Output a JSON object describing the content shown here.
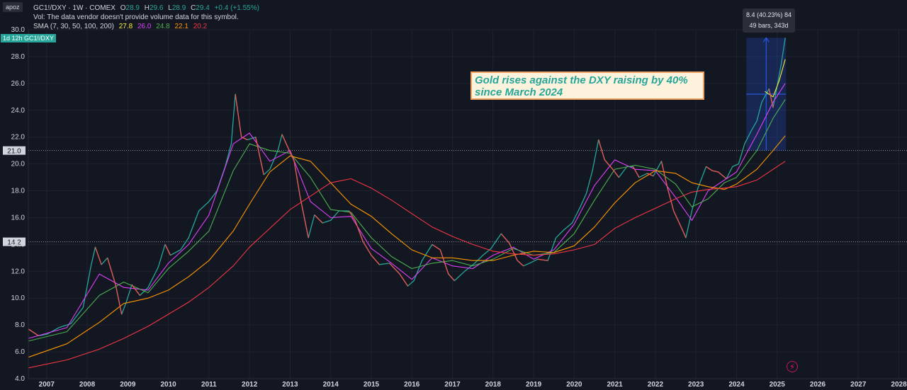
{
  "header": {
    "user_badge": "apoz",
    "symbol": "GC1!/DXY · 1W · COMEX",
    "ohlc": [
      {
        "label": "O",
        "value": "28.9"
      },
      {
        "label": "H",
        "value": "29.6"
      },
      {
        "label": "L",
        "value": "28.9"
      },
      {
        "label": "C",
        "value": "29.4"
      }
    ],
    "change": "+0.4 (+1.55%)",
    "vol_note": "Vol: The data vendor doesn't provide volume data for this symbol.",
    "sma_label": "SMA (7, 30, 50, 100, 200)",
    "sma_values": [
      {
        "value": "27.8",
        "color": "#ffeb3b"
      },
      {
        "value": "26.0",
        "color": "#e040fb"
      },
      {
        "value": "24.8",
        "color": "#4caf50"
      },
      {
        "value": "22.1",
        "color": "#ff9800"
      },
      {
        "value": "20.2",
        "color": "#f23645"
      }
    ],
    "timeframe_badge": "1d 12h",
    "price_tag": "GC1!/DXY"
  },
  "annotation": {
    "text": "Gold rises against the DXY raising by 40% since March 2024"
  },
  "measure": {
    "line1": "8.4 (40.23%) 84",
    "line2": "49 bars, 343d"
  },
  "colors": {
    "background": "#131722",
    "up": "#26a69a",
    "down": "#ef5350",
    "grid": "#1f2330",
    "axis_text": "#d1d4dc",
    "measure_fill": "#2962ff"
  },
  "icons": {
    "flash": "flash-icon"
  },
  "chart_data": {
    "type": "line",
    "yaxis": {
      "ticks": [
        "30.0",
        "28.0",
        "26.0",
        "24.0",
        "22.0",
        "20.0",
        "18.0",
        "16.0",
        "14.0",
        "12.0",
        "10.0",
        "8.0",
        "6.0",
        "4.0"
      ],
      "ylim": [
        4.0,
        30.0
      ],
      "marked_levels": [
        "21.0",
        "14.2"
      ]
    },
    "xaxis": {
      "ticks": [
        "2007",
        "2008",
        "2009",
        "2010",
        "2011",
        "2012",
        "2013",
        "2014",
        "2015",
        "2016",
        "2017",
        "2018",
        "2019",
        "2020",
        "2021",
        "2022",
        "2023",
        "2024",
        "2025",
        "2026",
        "2027",
        "2028"
      ],
      "xlim": [
        2006.55,
        2028.2
      ]
    },
    "series": [
      {
        "name": "GC1!/DXY",
        "color": "#26a69a",
        "points": [
          [
            2006.55,
            7.7
          ],
          [
            2006.8,
            7.2
          ],
          [
            2007.0,
            7.3
          ],
          [
            2007.3,
            7.8
          ],
          [
            2007.6,
            8.1
          ],
          [
            2007.9,
            9.3
          ],
          [
            2008.1,
            12.5
          ],
          [
            2008.2,
            13.8
          ],
          [
            2008.35,
            12.5
          ],
          [
            2008.5,
            13.0
          ],
          [
            2008.7,
            11.0
          ],
          [
            2008.85,
            8.8
          ],
          [
            2008.95,
            9.6
          ],
          [
            2009.1,
            11.0
          ],
          [
            2009.3,
            10.2
          ],
          [
            2009.5,
            10.8
          ],
          [
            2009.75,
            12.3
          ],
          [
            2009.92,
            14.0
          ],
          [
            2010.05,
            13.2
          ],
          [
            2010.3,
            13.6
          ],
          [
            2010.5,
            14.5
          ],
          [
            2010.75,
            16.5
          ],
          [
            2011.0,
            17.2
          ],
          [
            2011.2,
            18.0
          ],
          [
            2011.4,
            19.8
          ],
          [
            2011.55,
            21.5
          ],
          [
            2011.65,
            25.2
          ],
          [
            2011.8,
            22.0
          ],
          [
            2011.95,
            21.8
          ],
          [
            2012.15,
            22.0
          ],
          [
            2012.35,
            19.2
          ],
          [
            2012.5,
            19.6
          ],
          [
            2012.7,
            21.0
          ],
          [
            2012.8,
            22.2
          ],
          [
            2012.95,
            21.2
          ],
          [
            2013.1,
            20.2
          ],
          [
            2013.25,
            17.5
          ],
          [
            2013.45,
            14.5
          ],
          [
            2013.6,
            16.2
          ],
          [
            2013.8,
            15.6
          ],
          [
            2014.0,
            15.8
          ],
          [
            2014.2,
            16.5
          ],
          [
            2014.45,
            16.5
          ],
          [
            2014.6,
            15.8
          ],
          [
            2014.8,
            14.2
          ],
          [
            2015.0,
            13.2
          ],
          [
            2015.2,
            12.5
          ],
          [
            2015.45,
            12.6
          ],
          [
            2015.7,
            11.8
          ],
          [
            2015.9,
            10.9
          ],
          [
            2016.05,
            11.3
          ],
          [
            2016.25,
            12.8
          ],
          [
            2016.5,
            14.0
          ],
          [
            2016.7,
            13.6
          ],
          [
            2016.9,
            11.8
          ],
          [
            2017.05,
            11.3
          ],
          [
            2017.3,
            12.0
          ],
          [
            2017.55,
            12.6
          ],
          [
            2017.75,
            13.2
          ],
          [
            2017.95,
            13.7
          ],
          [
            2018.2,
            14.8
          ],
          [
            2018.4,
            14.1
          ],
          [
            2018.6,
            12.8
          ],
          [
            2018.75,
            12.4
          ],
          [
            2018.9,
            12.6
          ],
          [
            2019.1,
            12.9
          ],
          [
            2019.35,
            12.8
          ],
          [
            2019.55,
            14.5
          ],
          [
            2019.75,
            15.1
          ],
          [
            2019.95,
            15.6
          ],
          [
            2020.15,
            16.8
          ],
          [
            2020.3,
            17.8
          ],
          [
            2020.45,
            19.5
          ],
          [
            2020.6,
            21.8
          ],
          [
            2020.75,
            20.3
          ],
          [
            2020.95,
            19.6
          ],
          [
            2021.1,
            19.0
          ],
          [
            2021.3,
            19.8
          ],
          [
            2021.45,
            19.8
          ],
          [
            2021.6,
            19.0
          ],
          [
            2021.8,
            19.3
          ],
          [
            2021.95,
            19.1
          ],
          [
            2022.15,
            20.2
          ],
          [
            2022.3,
            18.2
          ],
          [
            2022.45,
            16.5
          ],
          [
            2022.65,
            15.2
          ],
          [
            2022.75,
            14.5
          ],
          [
            2022.9,
            16.5
          ],
          [
            2023.05,
            18.2
          ],
          [
            2023.25,
            19.8
          ],
          [
            2023.4,
            19.5
          ],
          [
            2023.55,
            19.4
          ],
          [
            2023.75,
            18.9
          ],
          [
            2023.9,
            19.8
          ],
          [
            2024.05,
            20.0
          ],
          [
            2024.2,
            21.5
          ],
          [
            2024.35,
            22.4
          ],
          [
            2024.5,
            23.2
          ],
          [
            2024.62,
            24.6
          ],
          [
            2024.8,
            25.6
          ],
          [
            2024.9,
            24.2
          ],
          [
            2025.0,
            25.8
          ],
          [
            2025.1,
            27.4
          ],
          [
            2025.2,
            29.4
          ]
        ]
      },
      {
        "name": "SMA 30",
        "color": "#e040fb",
        "points": [
          [
            2006.55,
            7.0
          ],
          [
            2007.5,
            7.8
          ],
          [
            2008.3,
            11.8
          ],
          [
            2008.9,
            10.8
          ],
          [
            2009.5,
            10.6
          ],
          [
            2010.0,
            12.6
          ],
          [
            2010.5,
            14.0
          ],
          [
            2011.0,
            16.2
          ],
          [
            2011.6,
            21.5
          ],
          [
            2012.0,
            22.3
          ],
          [
            2012.5,
            20.2
          ],
          [
            2013.0,
            21.0
          ],
          [
            2013.5,
            17.2
          ],
          [
            2014.0,
            16.0
          ],
          [
            2014.5,
            16.1
          ],
          [
            2015.0,
            13.7
          ],
          [
            2015.5,
            12.6
          ],
          [
            2016.0,
            11.4
          ],
          [
            2016.5,
            13.0
          ],
          [
            2017.0,
            12.4
          ],
          [
            2017.5,
            12.2
          ],
          [
            2018.0,
            13.2
          ],
          [
            2018.5,
            13.8
          ],
          [
            2019.0,
            12.9
          ],
          [
            2019.5,
            13.6
          ],
          [
            2020.0,
            15.5
          ],
          [
            2020.5,
            18.4
          ],
          [
            2021.0,
            20.3
          ],
          [
            2021.5,
            19.6
          ],
          [
            2022.0,
            19.5
          ],
          [
            2022.5,
            17.5
          ],
          [
            2022.9,
            15.8
          ],
          [
            2023.3,
            18.0
          ],
          [
            2023.7,
            18.8
          ],
          [
            2024.0,
            19.4
          ],
          [
            2024.5,
            22.2
          ],
          [
            2024.9,
            24.6
          ],
          [
            2025.2,
            26.0
          ]
        ]
      },
      {
        "name": "SMA 50",
        "color": "#4caf50",
        "points": [
          [
            2006.55,
            6.8
          ],
          [
            2007.5,
            7.5
          ],
          [
            2008.3,
            10.2
          ],
          [
            2008.9,
            11.2
          ],
          [
            2009.5,
            10.4
          ],
          [
            2010.0,
            12.2
          ],
          [
            2010.5,
            13.5
          ],
          [
            2011.0,
            15.0
          ],
          [
            2011.6,
            19.5
          ],
          [
            2012.0,
            21.5
          ],
          [
            2012.5,
            21.0
          ],
          [
            2013.0,
            20.8
          ],
          [
            2013.5,
            19.0
          ],
          [
            2014.0,
            16.6
          ],
          [
            2014.5,
            16.4
          ],
          [
            2015.0,
            14.5
          ],
          [
            2015.5,
            13.1
          ],
          [
            2016.0,
            12.2
          ],
          [
            2016.5,
            12.6
          ],
          [
            2017.0,
            12.8
          ],
          [
            2017.5,
            12.4
          ],
          [
            2018.0,
            12.9
          ],
          [
            2018.5,
            13.7
          ],
          [
            2019.0,
            13.2
          ],
          [
            2019.5,
            13.4
          ],
          [
            2020.0,
            14.8
          ],
          [
            2020.5,
            17.3
          ],
          [
            2021.0,
            19.6
          ],
          [
            2021.5,
            19.9
          ],
          [
            2022.0,
            19.6
          ],
          [
            2022.5,
            18.5
          ],
          [
            2022.9,
            16.8
          ],
          [
            2023.3,
            17.4
          ],
          [
            2023.7,
            18.6
          ],
          [
            2024.0,
            19.0
          ],
          [
            2024.5,
            21.0
          ],
          [
            2024.9,
            23.4
          ],
          [
            2025.2,
            24.8
          ]
        ]
      },
      {
        "name": "SMA 100",
        "color": "#ff9800",
        "points": [
          [
            2006.55,
            5.6
          ],
          [
            2007.5,
            6.6
          ],
          [
            2008.3,
            8.2
          ],
          [
            2008.9,
            9.6
          ],
          [
            2009.5,
            10.0
          ],
          [
            2010.0,
            10.6
          ],
          [
            2010.5,
            11.6
          ],
          [
            2011.0,
            12.8
          ],
          [
            2011.6,
            15.0
          ],
          [
            2012.0,
            17.0
          ],
          [
            2012.5,
            19.4
          ],
          [
            2013.0,
            20.6
          ],
          [
            2013.5,
            20.2
          ],
          [
            2014.0,
            18.6
          ],
          [
            2014.5,
            17.0
          ],
          [
            2015.0,
            16.1
          ],
          [
            2015.5,
            14.8
          ],
          [
            2016.0,
            13.6
          ],
          [
            2016.5,
            13.0
          ],
          [
            2017.0,
            13.0
          ],
          [
            2017.5,
            12.8
          ],
          [
            2018.0,
            12.8
          ],
          [
            2018.5,
            13.2
          ],
          [
            2019.0,
            13.5
          ],
          [
            2019.5,
            13.4
          ],
          [
            2020.0,
            13.9
          ],
          [
            2020.5,
            15.3
          ],
          [
            2021.0,
            17.1
          ],
          [
            2021.5,
            18.6
          ],
          [
            2022.0,
            19.5
          ],
          [
            2022.5,
            19.3
          ],
          [
            2022.9,
            18.6
          ],
          [
            2023.3,
            18.3
          ],
          [
            2023.7,
            18.1
          ],
          [
            2024.0,
            18.5
          ],
          [
            2024.5,
            19.6
          ],
          [
            2024.9,
            21.0
          ],
          [
            2025.2,
            22.1
          ]
        ]
      },
      {
        "name": "SMA 200",
        "color": "#f23645",
        "points": [
          [
            2006.55,
            4.8
          ],
          [
            2007.5,
            5.4
          ],
          [
            2008.3,
            6.2
          ],
          [
            2008.9,
            7.0
          ],
          [
            2009.5,
            7.9
          ],
          [
            2010.0,
            8.8
          ],
          [
            2010.5,
            9.7
          ],
          [
            2011.0,
            10.8
          ],
          [
            2011.6,
            12.4
          ],
          [
            2012.0,
            13.8
          ],
          [
            2012.5,
            15.2
          ],
          [
            2013.0,
            16.6
          ],
          [
            2013.5,
            17.6
          ],
          [
            2014.0,
            18.6
          ],
          [
            2014.5,
            18.9
          ],
          [
            2015.0,
            18.2
          ],
          [
            2015.5,
            17.3
          ],
          [
            2016.0,
            16.3
          ],
          [
            2016.5,
            15.3
          ],
          [
            2017.0,
            14.6
          ],
          [
            2017.5,
            14.0
          ],
          [
            2018.0,
            13.5
          ],
          [
            2018.5,
            13.3
          ],
          [
            2019.0,
            13.2
          ],
          [
            2019.5,
            13.3
          ],
          [
            2020.0,
            13.6
          ],
          [
            2020.5,
            14.0
          ],
          [
            2021.0,
            15.2
          ],
          [
            2021.5,
            16.0
          ],
          [
            2022.0,
            16.7
          ],
          [
            2022.5,
            17.4
          ],
          [
            2022.9,
            17.9
          ],
          [
            2023.3,
            18.1
          ],
          [
            2023.7,
            18.2
          ],
          [
            2024.0,
            18.3
          ],
          [
            2024.5,
            18.8
          ],
          [
            2024.9,
            19.6
          ],
          [
            2025.2,
            20.2
          ]
        ]
      },
      {
        "name": "SMA 7",
        "color": "#ffeb3b",
        "points": [
          [
            2024.7,
            25.4
          ],
          [
            2024.9,
            25.0
          ],
          [
            2025.05,
            26.2
          ],
          [
            2025.2,
            27.8
          ]
        ]
      }
    ],
    "measure_range": {
      "x_start": 2024.24,
      "x_end": 2025.22,
      "y_start": 21.0,
      "y_end": 29.4
    },
    "grid": true
  }
}
